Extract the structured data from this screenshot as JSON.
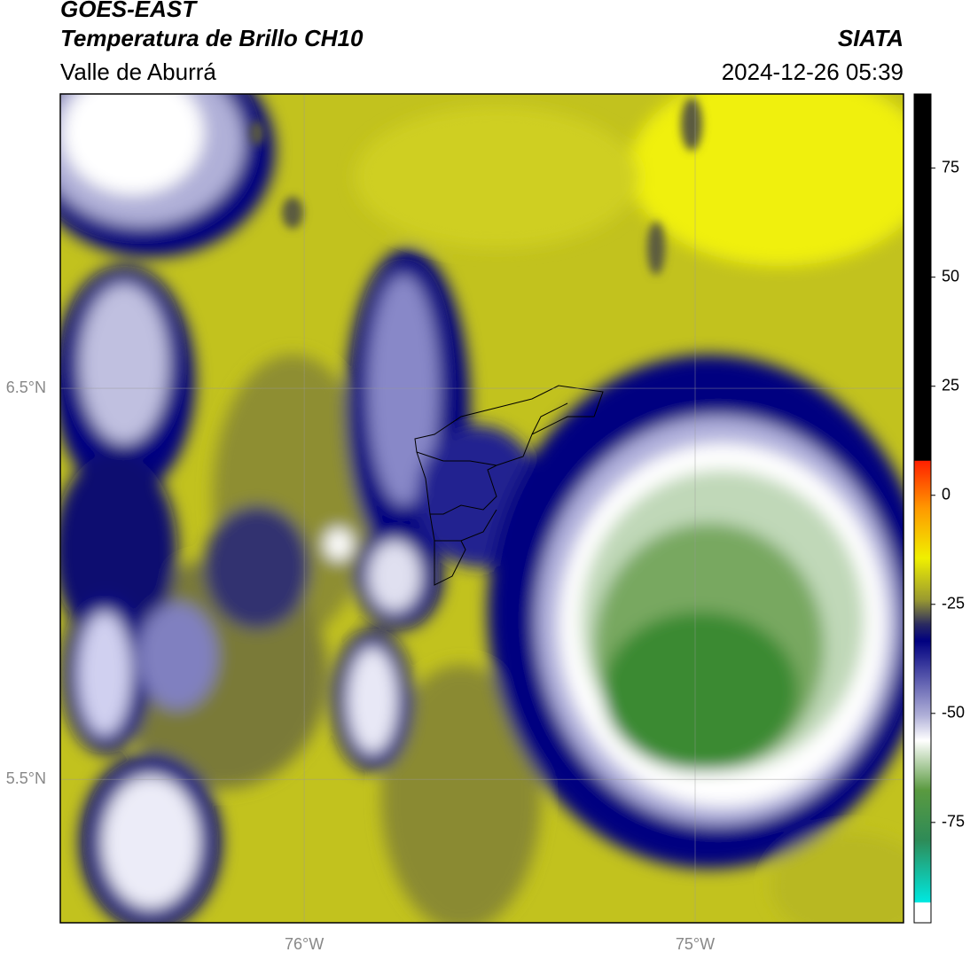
{
  "header": {
    "title": "GOES-EAST",
    "subtitle": "Temperatura de Brillo CH10",
    "region": "Valle de Aburrá",
    "source": "SIATA",
    "datetime": "2024-12-26 05:39"
  },
  "map": {
    "xlim": [
      -76.624,
      -74.467
    ],
    "ylim": [
      5.133,
      7.253
    ],
    "xticks": [
      {
        "value": -76,
        "label": "76°W"
      },
      {
        "value": -75,
        "label": "75°W"
      }
    ],
    "yticks": [
      {
        "value": 6.5,
        "label": "6.5°N"
      },
      {
        "value": 5.5,
        "label": "5.5°N"
      }
    ]
  },
  "colorbar": {
    "lim": [
      -98,
      92
    ],
    "ticks": [
      75,
      50,
      25,
      0,
      -25,
      -50,
      -75
    ]
  }
}
